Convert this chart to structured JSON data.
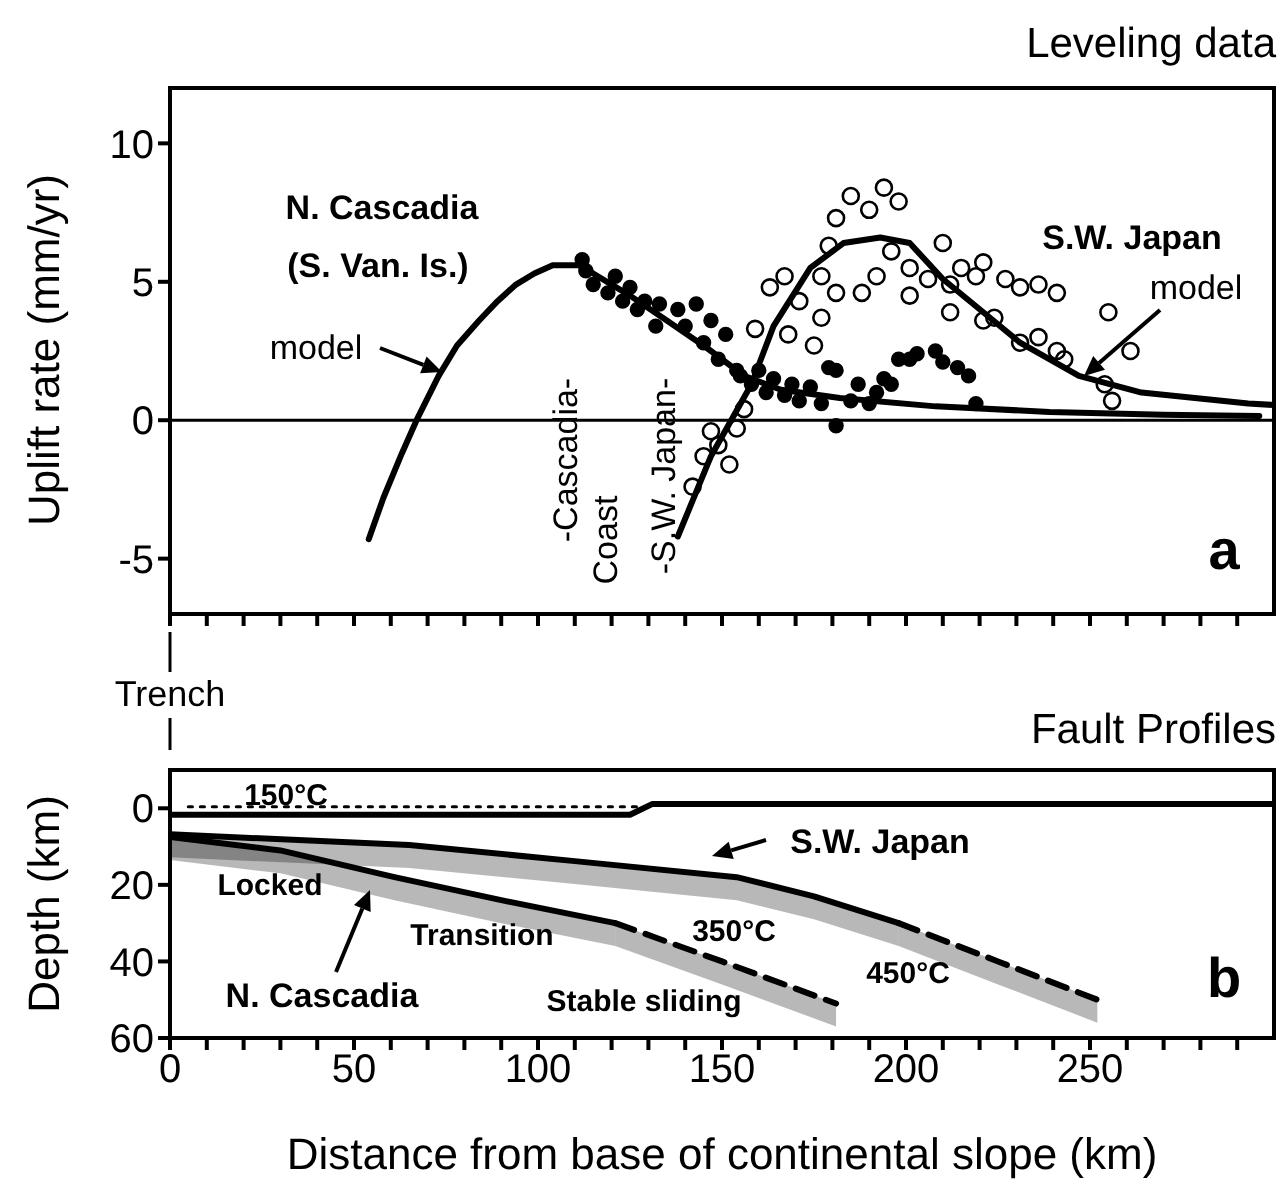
{
  "chart_data": [
    {
      "type": "line",
      "title": "Leveling data",
      "ylabel": "Uplift rate (mm/yr)",
      "xlim": [
        0,
        300
      ],
      "ylim": [
        -7,
        12
      ],
      "yticks": [
        -5,
        0,
        5,
        10
      ],
      "tick_labels": "y",
      "xticks": [
        0,
        {
          "value": 10,
          "label": null
        },
        {
          "value": 20,
          "label": null
        },
        {
          "value": 30,
          "label": null
        },
        {
          "value": 40,
          "label": null
        },
        50,
        {
          "value": 60,
          "label": null
        },
        {
          "value": 70,
          "label": null
        },
        {
          "value": 80,
          "label": null
        },
        {
          "value": 90,
          "label": null
        },
        100,
        {
          "value": 110,
          "label": null
        },
        {
          "value": 120,
          "label": null
        },
        {
          "value": 130,
          "label": null
        },
        {
          "value": 140,
          "label": null
        },
        150,
        {
          "value": 160,
          "label": null
        },
        {
          "value": 170,
          "label": null
        },
        {
          "value": 180,
          "label": null
        },
        {
          "value": 190,
          "label": null
        },
        200,
        {
          "value": 210,
          "label": null
        },
        {
          "value": 220,
          "label": null
        },
        {
          "value": 230,
          "label": null
        },
        {
          "value": 240,
          "label": null
        },
        250,
        {
          "value": 260,
          "label": null
        },
        {
          "value": 270,
          "label": null
        },
        {
          "value": 280,
          "label": null
        },
        {
          "value": 290,
          "label": null
        }
      ],
      "ref_lines": [
        {
          "axis": "y",
          "value": 0,
          "color": "#000000"
        }
      ],
      "annotations": [
        "N. Cascadia",
        "(S. Van. Is.)",
        "model",
        "S.W. Japan",
        "model",
        "-Cascadia-",
        "Coast",
        "-S.W. Japan-",
        "a"
      ],
      "series": [
        {
          "type": "scatter",
          "color": "#000000",
          "marker": "circle",
          "x": [
            112,
            115,
            119,
            123,
            127,
            132,
            138,
            140,
            145,
            149,
            154,
            158,
            162,
            167,
            171,
            177,
            181,
            181,
            185,
            190,
            194,
            198,
            203,
            208,
            212,
            217,
            219,
            113,
            121,
            125,
            129,
            133,
            143,
            147,
            151,
            155,
            160,
            164,
            169,
            174,
            179,
            187,
            192,
            196,
            201,
            210,
            214
          ],
          "values": [
            5.8,
            4.9,
            4.6,
            4.3,
            4.0,
            3.4,
            4.0,
            3.4,
            2.8,
            2.2,
            1.8,
            1.3,
            1.0,
            0.9,
            0.7,
            0.6,
            1.8,
            -0.2,
            0.7,
            0.6,
            1.5,
            2.2,
            2.4,
            2.5,
            null,
            1.6,
            0.6,
            5.4,
            5.2,
            4.8,
            4.3,
            4.2,
            4.2,
            3.6,
            3.1,
            1.6,
            1.8,
            1.5,
            1.3,
            1.2,
            1.9,
            1.3,
            1.0,
            1.3,
            2.2,
            2.1,
            1.9
          ]
        },
        {
          "color": "#000000",
          "x": [
            54,
            58,
            63,
            67,
            73,
            78,
            84,
            89,
            94,
            99,
            104,
            111,
            115,
            125,
            135,
            146,
            156,
            166,
            182,
            208,
            239,
            270,
            296
          ],
          "values": [
            -4.3,
            -2.8,
            -1.2,
            0,
            1.6,
            2.7,
            3.6,
            4.3,
            4.9,
            5.3,
            5.6,
            5.6,
            5.3,
            4.5,
            3.6,
            2.6,
            1.6,
            1.1,
            0.8,
            0.5,
            0.3,
            0.2,
            0.15
          ]
        },
        {
          "type": "scatter",
          "color": "#000000",
          "marker": "circle",
          "x": [
            142,
            145,
            147,
            149,
            152,
            154,
            156,
            159,
            163,
            167,
            168,
            171,
            175,
            177,
            179,
            181,
            185,
            190,
            194,
            198,
            188,
            192,
            196,
            201,
            206,
            210,
            212,
            215,
            219,
            221,
            224,
            227,
            231,
            236,
            241,
            231,
            236,
            241,
            243,
            255,
            261,
            254,
            256,
            201,
            212,
            221,
            181,
            177
          ],
          "values": [
            -2.4,
            -1.3,
            -0.4,
            -0.9,
            -1.6,
            -0.3,
            0.4,
            3.3,
            4.8,
            5.2,
            3.1,
            4.3,
            2.7,
            5.2,
            6.3,
            7.3,
            8.1,
            7.6,
            8.4,
            7.9,
            4.6,
            5.2,
            6.1,
            5.5,
            5.1,
            6.4,
            4.9,
            5.5,
            5.2,
            5.7,
            3.7,
            5.1,
            4.8,
            4.9,
            4.6,
            2.8,
            3.0,
            2.5,
            2.2,
            3.9,
            2.5,
            1.3,
            0.7,
            4.5,
            3.9,
            3.6,
            4.6,
            3.7
          ]
        },
        {
          "color": "#000000",
          "x": [
            138,
            147,
            158,
            164,
            174,
            183,
            193,
            201,
            210,
            221,
            231,
            247,
            264,
            293,
            300
          ],
          "values": [
            -4.2,
            -1.3,
            1.3,
            3.4,
            5.5,
            6.4,
            6.6,
            6.4,
            5.1,
            3.9,
            2.8,
            1.6,
            1.0,
            0.6,
            0.55
          ]
        }
      ]
    },
    {
      "type": "line",
      "title": "Fault Profiles",
      "xlabel": "Distance from base of continental slope (km)",
      "ylabel": "Depth (km)",
      "xlim": [
        0,
        300
      ],
      "ylim": [
        60,
        -10
      ],
      "yticks": [
        0,
        20,
        40,
        60
      ],
      "xticks": [
        0,
        {
          "value": 10,
          "label": null
        },
        {
          "value": 20,
          "label": null
        },
        {
          "value": 30,
          "label": null
        },
        {
          "value": 40,
          "label": null
        },
        50,
        {
          "value": 60,
          "label": null
        },
        {
          "value": 70,
          "label": null
        },
        {
          "value": 80,
          "label": null
        },
        {
          "value": 90,
          "label": null
        },
        100,
        {
          "value": 110,
          "label": null
        },
        {
          "value": 120,
          "label": null
        },
        {
          "value": 130,
          "label": null
        },
        {
          "value": 140,
          "label": null
        },
        150,
        {
          "value": 160,
          "label": null
        },
        {
          "value": 170,
          "label": null
        },
        {
          "value": 180,
          "label": null
        },
        {
          "value": 190,
          "label": null
        },
        200,
        {
          "value": 210,
          "label": null
        },
        {
          "value": 220,
          "label": null
        },
        {
          "value": 230,
          "label": null
        },
        {
          "value": 240,
          "label": null
        },
        250,
        {
          "value": 260,
          "label": null
        },
        {
          "value": 270,
          "label": null
        },
        {
          "value": 280,
          "label": null
        },
        {
          "value": 290,
          "label": null
        }
      ],
      "annotations": [
        {
          "text": "Trench",
          "x": 0
        },
        "150°C",
        "S.W. Japan",
        "Locked",
        "Transition",
        "350°C",
        "N. Cascadia",
        "Stable sliding",
        "450°C",
        "b"
      ],
      "series": [
        {
          "color": "#000000",
          "line_style": "solid",
          "x": [
            0,
            125,
            131,
            300
          ],
          "values": [
            1.7,
            1.7,
            -1.1,
            -1.1
          ]
        },
        {
          "color": "#000000",
          "line_style": "dotted",
          "x": [
            5,
            128
          ],
          "values": [
            -0.4,
            -0.4
          ]
        },
        {
          "color": "#000000",
          "line_style": "solid",
          "x": [
            0,
            30,
            61,
            90,
            121
          ],
          "values": [
            7.5,
            11,
            18,
            24,
            30
          ],
          "lower": [
            7.5,
            11,
            18,
            24,
            30
          ],
          "upper": [
            13.5,
            17,
            24,
            30,
            36
          ]
        },
        {
          "color": "#000000",
          "line_style": "dashed",
          "x": [
            121,
            150,
            181
          ],
          "values": [
            30,
            40,
            51
          ],
          "lower": [
            30,
            40,
            51
          ],
          "upper": [
            36,
            46,
            57
          ]
        },
        {
          "color": "#000000",
          "line_style": "solid",
          "x": [
            0,
            65,
            110,
            154,
            175,
            198
          ],
          "values": [
            6.8,
            9.6,
            13.8,
            18,
            23,
            30
          ],
          "lower": [
            6.8,
            9.6,
            13.8,
            18,
            23,
            30
          ],
          "upper": [
            12.8,
            15.6,
            19.8,
            24,
            29,
            36
          ]
        },
        {
          "color": "#000000",
          "line_style": "dashed",
          "x": [
            198,
            225,
            252
          ],
          "values": [
            30,
            40,
            50
          ],
          "lower": [
            30,
            40,
            50
          ],
          "upper": [
            36,
            46,
            56
          ]
        }
      ]
    }
  ]
}
